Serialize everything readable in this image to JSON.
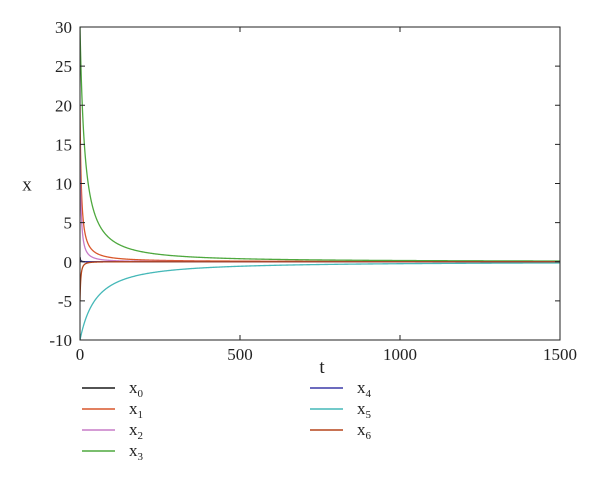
{
  "chart_data": {
    "type": "line",
    "title": "",
    "xlabel": "t",
    "ylabel": "x",
    "xlim": [
      0,
      1500
    ],
    "ylim": [
      -10,
      30
    ],
    "xticks": [
      0,
      500,
      1000,
      1500
    ],
    "yticks": [
      -10,
      -5,
      0,
      5,
      10,
      15,
      20,
      25,
      30
    ],
    "grid": false,
    "legend_position": "bottom",
    "series": [
      {
        "name": "x",
        "sub": "0",
        "color": "#1a1a1a",
        "x0": 0,
        "a": 0.6,
        "b": 0,
        "k": 0.2
      },
      {
        "name": "x",
        "sub": "1",
        "color": "#d9572b",
        "x0": 0,
        "a": 20,
        "b": 5,
        "k": 0.2
      },
      {
        "name": "x",
        "sub": "2",
        "color": "#c77bc7",
        "x0": 0,
        "a": 15,
        "b": 2,
        "k": 0.2
      },
      {
        "name": "x",
        "sub": "3",
        "color": "#4ea83e",
        "x0": 0,
        "a": 30,
        "b": 3,
        "k": 0.05
      },
      {
        "name": "x",
        "sub": "4",
        "color": "#3b3aa8",
        "x0": 0,
        "a": 0.3,
        "b": 0,
        "k": 0.2
      },
      {
        "name": "x",
        "sub": "5",
        "color": "#45b8b8",
        "x0": 0,
        "a": -10,
        "b": 3,
        "k": 0.015
      },
      {
        "name": "x",
        "sub": "6",
        "color": "#b5451b",
        "x0": 0,
        "a": -5,
        "b": 1,
        "k": 0.2
      }
    ]
  }
}
